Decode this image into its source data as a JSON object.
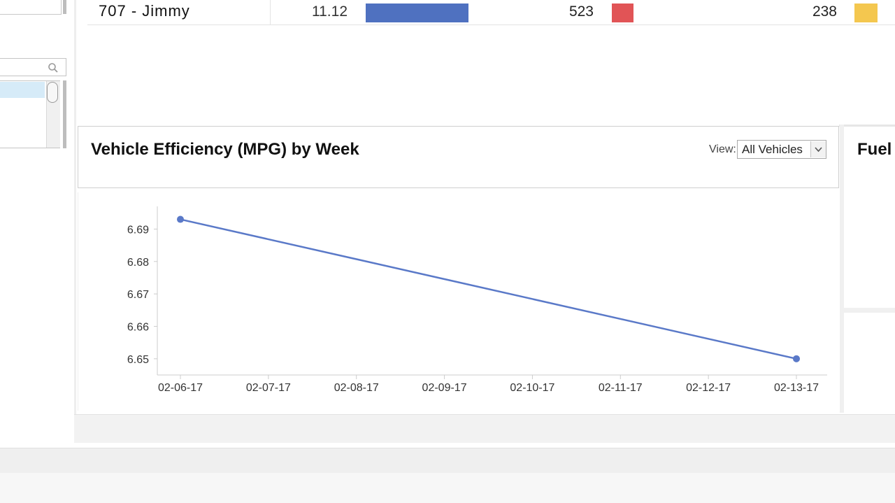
{
  "table": {
    "row": {
      "name": "707 - Jimmy",
      "mpg": "11.12",
      "value2": "523",
      "value3": "238"
    },
    "mpg_bar_fraction": 1.0,
    "colors": {
      "mpg_bar": "#4f71c0",
      "value2_bar": "#e15456",
      "value3_bar": "#f4c74f"
    }
  },
  "sidebar": {
    "search_placeholder": ""
  },
  "panel": {
    "title": "Vehicle Efficiency (MPG) by Week",
    "view_label": "View:",
    "view_selected": "All Vehicles"
  },
  "right_panel": {
    "title": "Fuel"
  },
  "chart_data": {
    "type": "line",
    "title": "Vehicle Efficiency (MPG) by Week",
    "categories": [
      "02-06-17",
      "02-07-17",
      "02-08-17",
      "02-09-17",
      "02-10-17",
      "02-11-17",
      "02-12-17",
      "02-13-17"
    ],
    "points": [
      {
        "x": "02-06-17",
        "y": 6.693
      },
      {
        "x": "02-13-17",
        "y": 6.65
      }
    ],
    "ylim": [
      6.645,
      6.697
    ],
    "yticks": [
      "6.69",
      "6.68",
      "6.67",
      "6.66",
      "6.65"
    ],
    "ytick_values": [
      6.69,
      6.68,
      6.67,
      6.66,
      6.65
    ],
    "grid": false,
    "color": "#5a79c8"
  }
}
